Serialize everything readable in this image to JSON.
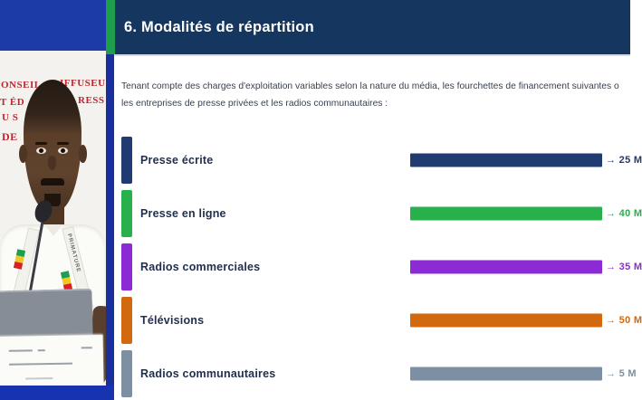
{
  "video_panel": {
    "banner_fragments": {
      "f1": "ONSEIL",
      "f2": "IFFUSEU",
      "f3": "T ÉD",
      "f4": "RESS",
      "f5": "U S",
      "f6": "DE"
    },
    "lanyard_text": "PRIMATURE",
    "colors": {
      "top_band": "#1d3ba6",
      "frame_right": "#1a2f9e",
      "frame_bottom": "#1733b0",
      "banner_text": "#bf272e",
      "flag_green": "#1e9e4e",
      "flag_yellow": "#f4c620",
      "flag_red": "#d2232a"
    }
  },
  "slide": {
    "accent_color": "#1f9e4e",
    "header": {
      "title": "6. Modalités de répartition",
      "bg": "#15365f"
    },
    "paragraph": {
      "line1": "Tenant compte des charges d'exploitation variables selon la nature du média, les fourchettes de financement suivantes o",
      "line2": "les entreprises de presse privées et les radios communautaires :"
    },
    "rows": [
      {
        "label": "Presse écrite",
        "value_label": "→ 25 M",
        "color": "#203b72"
      },
      {
        "label": "Presse en ligne",
        "value_label": "→ 40 M",
        "color": "#27b04b"
      },
      {
        "label": "Radios commerciales",
        "value_label": "→ 35 M",
        "color": "#8c2bd6"
      },
      {
        "label": "Télévisions",
        "value_label": "→ 50 M",
        "color": "#d2690e"
      },
      {
        "label": "Radios communautaires",
        "value_label": "→ 5 M",
        "color": "#7d8fa3"
      }
    ]
  },
  "chart_data": {
    "type": "bar",
    "orientation": "horizontal",
    "title": "6. Modalités de répartition",
    "categories": [
      "Presse écrite",
      "Presse en ligne",
      "Radios commerciales",
      "Télévisions",
      "Radios communautaires"
    ],
    "values": [
      25,
      40,
      35,
      50,
      5
    ],
    "unit": "M",
    "value_labels": [
      "→ 25 M",
      "→ 40 M",
      "→ 35 M",
      "→ 50 M",
      "→ 5 M"
    ],
    "series_colors": [
      "#203b72",
      "#27b04b",
      "#8c2bd6",
      "#d2690e",
      "#7d8fa3"
    ],
    "note": "Decorative slide bars drawn at equal length; magnitudes conveyed only by the value labels",
    "legend": "none",
    "grid": false
  }
}
